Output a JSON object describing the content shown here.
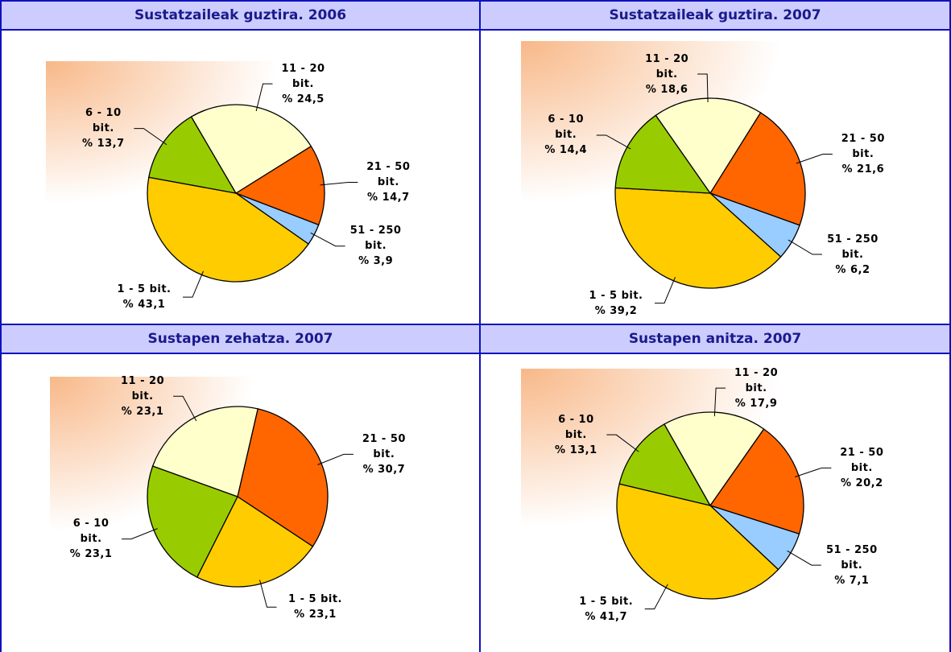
{
  "chart_data": [
    {
      "type": "pie",
      "title": "Sustatzaileak guztira. 2006",
      "categories": [
        "21 - 50 bit.",
        "51 - 250 bit.",
        "1 - 5 bit.",
        "6 - 10 bit.",
        "11 - 20 bit."
      ],
      "values": [
        14.7,
        3.9,
        43.1,
        13.7,
        24.5
      ],
      "value_labels": [
        "% 14,7",
        "% 3,9",
        "% 43,1",
        "% 13,7",
        "% 24,5"
      ],
      "colors": [
        "#ff6600",
        "#99ccff",
        "#ffcc00",
        "#99cc00",
        "#ffffcc"
      ]
    },
    {
      "type": "pie",
      "title": "Sustatzaileak guztira. 2007",
      "categories": [
        "21 - 50 bit.",
        "51 - 250 bit.",
        "1 - 5 bit.",
        "6 - 10 bit.",
        "11 - 20 bit."
      ],
      "values": [
        21.6,
        6.2,
        39.2,
        14.4,
        18.6
      ],
      "value_labels": [
        "% 21,6",
        "% 6,2",
        "% 39,2",
        "% 14,4",
        "% 18,6"
      ],
      "colors": [
        "#ff6600",
        "#99ccff",
        "#ffcc00",
        "#99cc00",
        "#ffffcc"
      ]
    },
    {
      "type": "pie",
      "title": "Sustapen zehatza. 2007",
      "categories": [
        "21 - 50 bit.",
        "1 - 5 bit.",
        "6 - 10 bit.",
        "11 - 20 bit."
      ],
      "values": [
        30.7,
        23.1,
        23.1,
        23.1
      ],
      "value_labels": [
        "% 30,7",
        "% 23,1",
        "% 23,1",
        "% 23,1"
      ],
      "colors": [
        "#ff6600",
        "#ffcc00",
        "#99cc00",
        "#ffffcc"
      ]
    },
    {
      "type": "pie",
      "title": "Sustapen anitza. 2007",
      "categories": [
        "21 - 50 bit.",
        "51 - 250 bit.",
        "1 - 5 bit.",
        "6 - 10 bit.",
        "11 - 20 bit."
      ],
      "values": [
        20.2,
        7.1,
        41.7,
        13.1,
        17.9
      ],
      "value_labels": [
        "% 20,2",
        "% 7,1",
        "% 41,7",
        "% 13,1",
        "% 17,9"
      ],
      "colors": [
        "#ff6600",
        "#99ccff",
        "#ffcc00",
        "#99cc00",
        "#ffffcc"
      ]
    }
  ]
}
